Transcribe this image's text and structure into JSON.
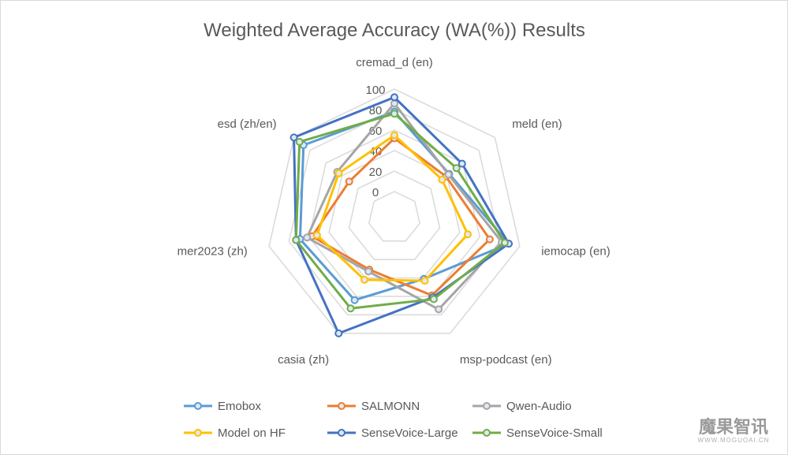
{
  "chart_data": {
    "type": "radar",
    "title": "Weighted Average Accuracy (WA(%)) Results",
    "axes": [
      "cremad_d (en)",
      "meld (en)",
      "iemocap (en)",
      "msp-podcast (en)",
      "casia (zh)",
      "mer2023 (zh)",
      "esd  (zh/en)"
    ],
    "rlim": [
      0,
      100
    ],
    "ticks": [
      "0",
      "20",
      "40",
      "60",
      "80",
      "100"
    ],
    "tick_values": [
      0,
      20,
      40,
      60,
      80,
      100
    ],
    "grid": true,
    "legend_position": "bottom",
    "series": [
      {
        "name": "Emobox",
        "color": "#5b9bd5",
        "values": [
          78,
          43,
          89,
          41,
          64,
          69,
          88
        ]
      },
      {
        "name": "SALMONN",
        "color": "#ed7d31",
        "values": [
          52,
          39,
          70,
          59,
          31,
          57,
          31
        ]
      },
      {
        "name": "Qwen-Audio",
        "color": "#a5a5a5",
        "values": [
          86,
          42,
          82,
          74,
          33,
          62,
          46
        ]
      },
      {
        "name": "Model on HF",
        "color": "#ffc000",
        "values": [
          55,
          34,
          48,
          43,
          42,
          52,
          44
        ]
      },
      {
        "name": "SenseVoice-Large",
        "color": "#4472c4",
        "values": [
          92,
          59,
          89,
          61,
          100,
          73,
          100
        ]
      },
      {
        "name": "SenseVoice-Small",
        "color": "#70ad47",
        "values": [
          76,
          52,
          85,
          63,
          73,
          73,
          93
        ]
      }
    ]
  },
  "watermark": {
    "text": "魔果智讯",
    "subtext": "WWW.MOGUOAI.CN"
  }
}
